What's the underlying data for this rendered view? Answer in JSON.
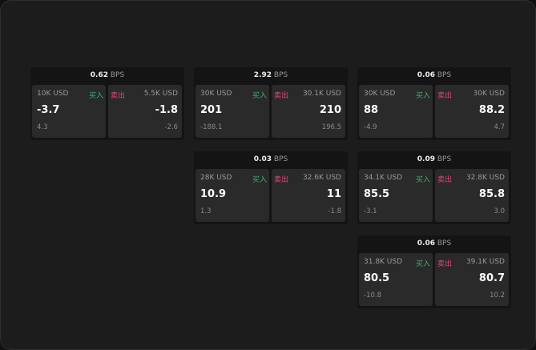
{
  "unit": "BPS",
  "buy_label": "买入",
  "sell_label": "卖出",
  "colors": {
    "buy": "#3cb371",
    "sell": "#e0457b"
  },
  "widgets": [
    {
      "spread": "0.62",
      "bid_size": "10K USD",
      "bid": "-3.7",
      "bid_change": "4.3",
      "ask_size": "5.5K USD",
      "ask": "-1.8",
      "ask_change": "-2.6"
    },
    {
      "spread": "2.92",
      "bid_size": "30K USD",
      "bid": "201",
      "bid_change": "-188.1",
      "ask_size": "30.1K USD",
      "ask": "210",
      "ask_change": "196.5"
    },
    {
      "spread": "0.06",
      "bid_size": "30K USD",
      "bid": "88",
      "bid_change": "-4.9",
      "ask_size": "30K USD",
      "ask": "88.2",
      "ask_change": "4.7"
    },
    {
      "spread": "0.03",
      "bid_size": "28K USD",
      "bid": "10.9",
      "bid_change": "1.3",
      "ask_size": "32.6K USD",
      "ask": "11",
      "ask_change": "-1.8"
    },
    {
      "spread": "0.09",
      "bid_size": "34.1K USD",
      "bid": "85.5",
      "bid_change": "-3.1",
      "ask_size": "32.8K USD",
      "ask": "85.8",
      "ask_change": "3.0"
    },
    {
      "spread": "0.06",
      "bid_size": "31.8K USD",
      "bid": "80.5",
      "bid_change": "-10.8",
      "ask_size": "39.1K USD",
      "ask": "80.7",
      "ask_change": "10.2"
    }
  ]
}
